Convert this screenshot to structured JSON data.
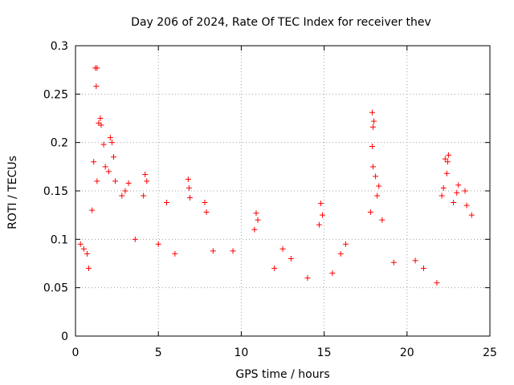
{
  "chart_data": {
    "type": "scatter",
    "title": "Day 206 of 2024, Rate Of TEC Index for receiver thev",
    "xlabel": "GPS time / hours",
    "ylabel": "ROTI / TECUs",
    "xlim": [
      0,
      25
    ],
    "ylim": [
      0,
      0.3
    ],
    "x_ticks": [
      0,
      5,
      10,
      15,
      20,
      25
    ],
    "x_tick_labels": [
      "0",
      "5",
      "10",
      "15",
      "20",
      "25"
    ],
    "y_ticks": [
      0,
      0.05,
      0.1,
      0.15,
      0.2,
      0.25,
      0.3
    ],
    "y_tick_labels": [
      "0",
      "0.05",
      "0.1",
      "0.15",
      "0.2",
      "0.25",
      "0.3"
    ],
    "grid": true,
    "marker": "+",
    "color": "#ff0000",
    "series": [
      {
        "name": "ROTI",
        "points": [
          [
            1.2,
            0.277
          ],
          [
            1.3,
            0.277
          ],
          [
            1.25,
            0.258
          ],
          [
            1.5,
            0.225
          ],
          [
            1.4,
            0.22
          ],
          [
            1.55,
            0.218
          ],
          [
            2.1,
            0.205
          ],
          [
            2.2,
            0.2
          ],
          [
            1.7,
            0.198
          ],
          [
            2.3,
            0.185
          ],
          [
            1.1,
            0.18
          ],
          [
            1.8,
            0.175
          ],
          [
            1.3,
            0.16
          ],
          [
            2.0,
            0.17
          ],
          [
            2.4,
            0.16
          ],
          [
            3.2,
            0.158
          ],
          [
            4.2,
            0.167
          ],
          [
            4.3,
            0.16
          ],
          [
            4.1,
            0.145
          ],
          [
            2.8,
            0.145
          ],
          [
            3.0,
            0.15
          ],
          [
            1.0,
            0.13
          ],
          [
            6.8,
            0.162
          ],
          [
            6.85,
            0.153
          ],
          [
            6.9,
            0.143
          ],
          [
            5.5,
            0.138
          ],
          [
            7.8,
            0.138
          ],
          [
            7.9,
            0.128
          ],
          [
            10.9,
            0.127
          ],
          [
            11.0,
            0.12
          ],
          [
            10.8,
            0.11
          ],
          [
            14.8,
            0.137
          ],
          [
            14.9,
            0.125
          ],
          [
            14.7,
            0.115
          ],
          [
            17.9,
            0.231
          ],
          [
            18.0,
            0.222
          ],
          [
            17.95,
            0.216
          ],
          [
            17.9,
            0.196
          ],
          [
            17.95,
            0.175
          ],
          [
            18.1,
            0.165
          ],
          [
            18.3,
            0.155
          ],
          [
            18.2,
            0.145
          ],
          [
            17.8,
            0.128
          ],
          [
            18.5,
            0.12
          ],
          [
            22.3,
            0.183
          ],
          [
            22.5,
            0.187
          ],
          [
            22.45,
            0.18
          ],
          [
            22.4,
            0.168
          ],
          [
            22.2,
            0.153
          ],
          [
            22.1,
            0.145
          ],
          [
            23.1,
            0.156
          ],
          [
            23.0,
            0.148
          ],
          [
            23.5,
            0.15
          ],
          [
            22.8,
            0.138
          ],
          [
            23.6,
            0.135
          ],
          [
            23.9,
            0.125
          ],
          [
            16.3,
            0.095
          ],
          [
            16.0,
            0.085
          ],
          [
            12.5,
            0.09
          ],
          [
            13.0,
            0.08
          ],
          [
            9.5,
            0.088
          ],
          [
            8.3,
            0.088
          ],
          [
            20.5,
            0.078
          ],
          [
            21.0,
            0.07
          ],
          [
            19.2,
            0.076
          ],
          [
            15.5,
            0.065
          ],
          [
            0.3,
            0.095
          ],
          [
            0.5,
            0.09
          ],
          [
            0.7,
            0.085
          ],
          [
            0.8,
            0.07
          ],
          [
            3.6,
            0.1
          ],
          [
            5.0,
            0.095
          ],
          [
            6.0,
            0.085
          ],
          [
            12.0,
            0.07
          ],
          [
            14.0,
            0.06
          ],
          [
            21.8,
            0.055
          ]
        ]
      }
    ]
  }
}
